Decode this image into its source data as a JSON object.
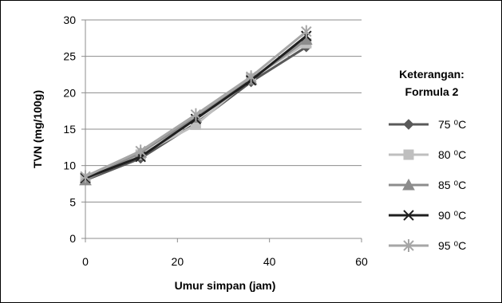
{
  "chart_data": {
    "type": "line",
    "xlabel": "Umur simpan (jam)",
    "ylabel": "TVN (mg/100g)",
    "xlim": [
      0,
      60
    ],
    "ylim": [
      0,
      30
    ],
    "xticks": [
      0,
      20,
      40,
      60
    ],
    "yticks": [
      0,
      5,
      10,
      15,
      20,
      25,
      30
    ],
    "grid": "horizontal",
    "legend_position": "right",
    "legend_title": [
      "Keterangan:",
      "Formula 2"
    ],
    "series": [
      {
        "name": "75 ⁰C",
        "marker": "diamond",
        "color": "#595959",
        "x": [
          0,
          12,
          24,
          36,
          48
        ],
        "y": [
          8.0,
          11.0,
          15.8,
          21.5,
          26.3
        ]
      },
      {
        "name": "80 ⁰C",
        "marker": "square",
        "color": "#bfbfbf",
        "x": [
          0,
          12,
          24,
          36,
          48
        ],
        "y": [
          8.2,
          11.5,
          15.6,
          22.0,
          26.8
        ]
      },
      {
        "name": "85 ⁰C",
        "marker": "triangle",
        "color": "#8c8c8c",
        "x": [
          0,
          12,
          24,
          36,
          48
        ],
        "y": [
          8.0,
          11.8,
          16.6,
          21.8,
          27.3
        ]
      },
      {
        "name": "90 ⁰C",
        "marker": "x",
        "color": "#1f1f1f",
        "x": [
          0,
          12,
          24,
          36,
          48
        ],
        "y": [
          8.3,
          11.2,
          16.4,
          21.7,
          27.8
        ]
      },
      {
        "name": "95 ⁰C",
        "marker": "star",
        "color": "#a6a6a6",
        "x": [
          0,
          12,
          24,
          36,
          48
        ],
        "y": [
          8.5,
          12.0,
          17.0,
          22.2,
          28.4
        ]
      }
    ]
  }
}
